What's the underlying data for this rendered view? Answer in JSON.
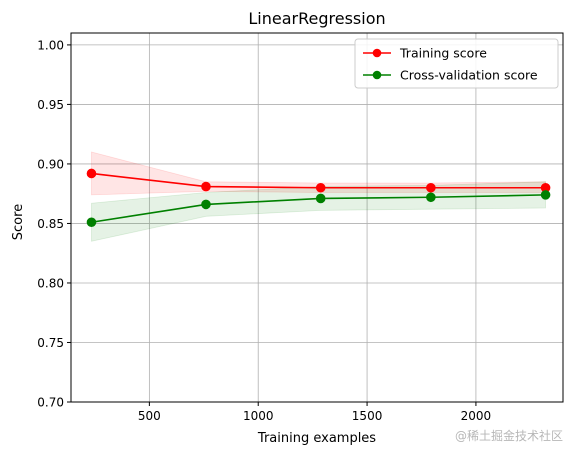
{
  "watermark": "@稀土掘金技术社区",
  "chart_data": {
    "type": "line",
    "title": "LinearRegression",
    "xlabel": "Training examples",
    "ylabel": "Score",
    "xlim": [
      140,
      2400
    ],
    "ylim": [
      0.7,
      1.01
    ],
    "xticks": [
      500,
      1000,
      1500,
      2000
    ],
    "yticks": [
      0.7,
      0.75,
      0.8,
      0.85,
      0.9,
      0.95,
      1.0
    ],
    "grid": true,
    "legend_position": "top-right",
    "x": [
      234,
      760,
      1287,
      1793,
      2320
    ],
    "series": [
      {
        "name": "Training score",
        "color": "#ff0000",
        "band_color": "#ffcccc",
        "values": [
          0.892,
          0.881,
          0.88,
          0.88,
          0.88
        ],
        "lower": [
          0.874,
          0.877,
          0.876,
          0.876,
          0.876
        ],
        "upper": [
          0.91,
          0.885,
          0.884,
          0.884,
          0.885
        ]
      },
      {
        "name": "Cross-validation score",
        "color": "#008000",
        "band_color": "#cce6cc",
        "values": [
          0.851,
          0.866,
          0.871,
          0.872,
          0.874
        ],
        "lower": [
          0.835,
          0.856,
          0.861,
          0.862,
          0.863
        ],
        "upper": [
          0.867,
          0.876,
          0.881,
          0.882,
          0.885
        ]
      }
    ]
  }
}
